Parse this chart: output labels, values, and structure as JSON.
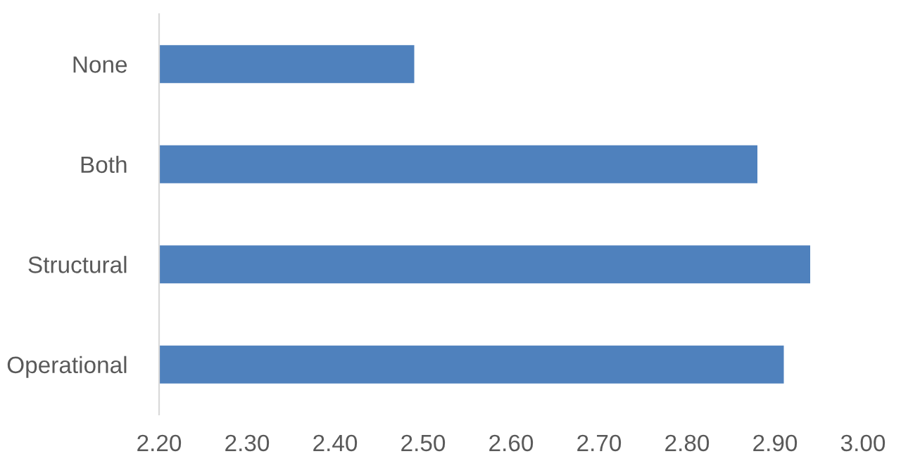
{
  "chart_data": {
    "type": "bar",
    "orientation": "horizontal",
    "categories": [
      "None",
      "Both",
      "Structural",
      "Operational"
    ],
    "values": [
      2.49,
      2.88,
      2.94,
      2.91
    ],
    "color": "#4f81bd",
    "xlim": [
      2.2,
      3.0
    ],
    "xticks": [
      {
        "value": 2.2,
        "label": "2.20"
      },
      {
        "value": 2.3,
        "label": "2.30"
      },
      {
        "value": 2.4,
        "label": "2.40"
      },
      {
        "value": 2.5,
        "label": "2.50"
      },
      {
        "value": 2.6,
        "label": "2.60"
      },
      {
        "value": 2.7,
        "label": "2.70"
      },
      {
        "value": 2.8,
        "label": "2.80"
      },
      {
        "value": 2.9,
        "label": "2.90"
      },
      {
        "value": 3.0,
        "label": "3.00"
      }
    ],
    "grid": false
  }
}
